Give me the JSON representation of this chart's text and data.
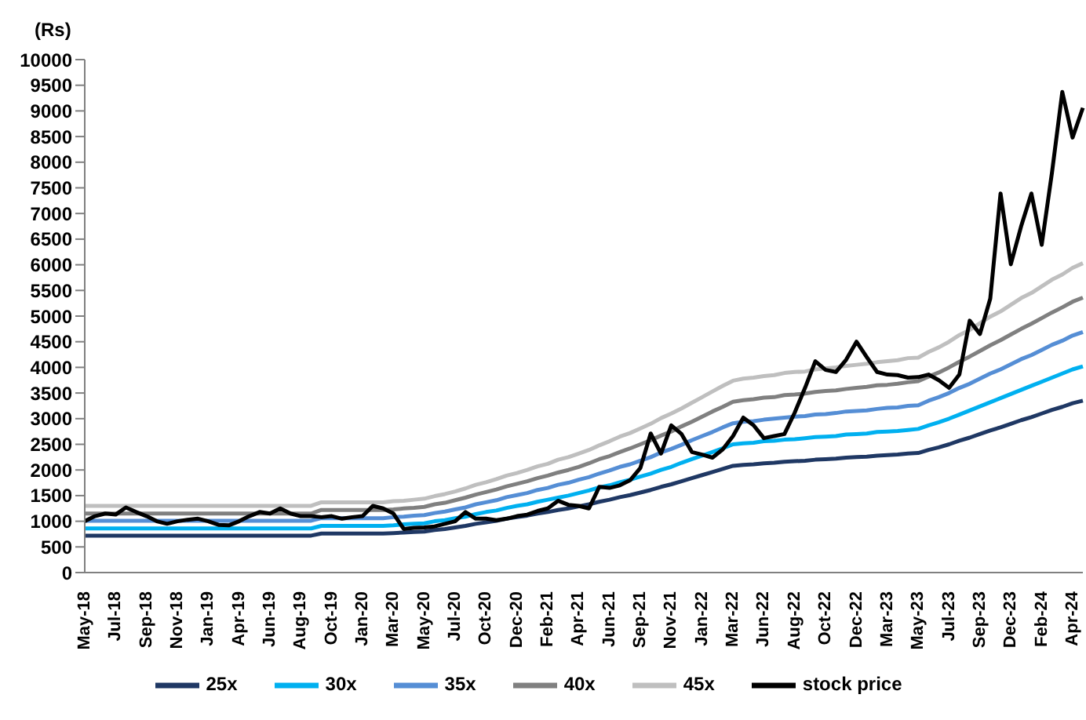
{
  "chart_data": {
    "type": "line",
    "ylabel": "(Rs)",
    "categories": [
      "May-18",
      null,
      null,
      "Jul-18",
      null,
      null,
      "Sep-18",
      null,
      null,
      "Nov-18",
      null,
      null,
      "Jan-19",
      null,
      null,
      "Apr-19",
      null,
      null,
      "Jun-19",
      null,
      null,
      "Aug-19",
      null,
      null,
      "Oct-19",
      null,
      null,
      "Jan-20",
      null,
      null,
      "Mar-20",
      null,
      null,
      "May-20",
      null,
      null,
      "Jul-20",
      null,
      null,
      "Oct-20",
      null,
      null,
      "Dec-20",
      null,
      null,
      "Feb-21",
      null,
      null,
      "Apr-21",
      null,
      null,
      "Jun-21",
      null,
      null,
      "Sep-21",
      null,
      null,
      "Nov-21",
      null,
      null,
      "Jan-22",
      null,
      null,
      "Mar-22",
      null,
      null,
      "Jun-22",
      null,
      null,
      "Aug-22",
      null,
      null,
      "Oct-22",
      null,
      null,
      "Dec-22",
      null,
      null,
      "Mar-23",
      null,
      null,
      "May-23",
      null,
      null,
      "Jul-23",
      null,
      null,
      "Sep-23",
      null,
      null,
      "Dec-23",
      null,
      null,
      "Feb-24",
      null,
      null,
      "Apr-24",
      null
    ],
    "series": [
      {
        "name": "25x",
        "color": "#1f3864",
        "values": [
          720,
          720,
          720,
          720,
          720,
          720,
          720,
          720,
          720,
          720,
          720,
          720,
          720,
          720,
          720,
          720,
          720,
          720,
          720,
          720,
          720,
          720,
          720,
          760,
          760,
          760,
          760,
          760,
          760,
          760,
          770,
          780,
          790,
          800,
          830,
          850,
          880,
          910,
          950,
          980,
          1010,
          1050,
          1080,
          1110,
          1150,
          1180,
          1220,
          1250,
          1290,
          1330,
          1380,
          1420,
          1470,
          1510,
          1560,
          1610,
          1670,
          1720,
          1780,
          1840,
          1900,
          1960,
          2020,
          2080,
          2100,
          2110,
          2130,
          2140,
          2160,
          2170,
          2180,
          2200,
          2210,
          2220,
          2240,
          2250,
          2260,
          2280,
          2290,
          2300,
          2320,
          2330,
          2390,
          2440,
          2500,
          2570,
          2630,
          2700,
          2770,
          2830,
          2900,
          2970,
          3030,
          3100,
          3170,
          3230,
          3300,
          3350
        ]
      },
      {
        "name": "30x",
        "color": "#00b0f0",
        "values": [
          860,
          860,
          860,
          860,
          860,
          860,
          860,
          860,
          860,
          860,
          860,
          860,
          860,
          860,
          860,
          860,
          860,
          860,
          860,
          860,
          860,
          860,
          860,
          910,
          910,
          910,
          910,
          910,
          910,
          910,
          920,
          940,
          950,
          960,
          1000,
          1020,
          1060,
          1090,
          1140,
          1180,
          1210,
          1260,
          1300,
          1330,
          1380,
          1420,
          1460,
          1500,
          1550,
          1600,
          1660,
          1700,
          1760,
          1810,
          1870,
          1930,
          2000,
          2060,
          2140,
          2210,
          2280,
          2350,
          2420,
          2500,
          2520,
          2530,
          2560,
          2570,
          2590,
          2600,
          2620,
          2640,
          2650,
          2660,
          2690,
          2700,
          2710,
          2740,
          2750,
          2760,
          2780,
          2800,
          2870,
          2930,
          3000,
          3080,
          3160,
          3240,
          3320,
          3400,
          3480,
          3560,
          3640,
          3720,
          3800,
          3880,
          3960,
          4020
        ]
      },
      {
        "name": "35x",
        "color": "#558ed5",
        "values": [
          1010,
          1010,
          1010,
          1010,
          1010,
          1010,
          1010,
          1010,
          1010,
          1010,
          1010,
          1010,
          1010,
          1010,
          1010,
          1010,
          1010,
          1010,
          1010,
          1010,
          1010,
          1010,
          1010,
          1060,
          1060,
          1060,
          1060,
          1060,
          1060,
          1060,
          1080,
          1090,
          1110,
          1120,
          1160,
          1190,
          1230,
          1270,
          1330,
          1370,
          1410,
          1470,
          1510,
          1550,
          1610,
          1650,
          1710,
          1750,
          1810,
          1860,
          1930,
          1990,
          2060,
          2110,
          2180,
          2250,
          2340,
          2410,
          2490,
          2580,
          2660,
          2740,
          2830,
          2910,
          2940,
          2950,
          2980,
          3000,
          3020,
          3040,
          3050,
          3080,
          3090,
          3110,
          3140,
          3150,
          3160,
          3190,
          3210,
          3220,
          3250,
          3260,
          3350,
          3420,
          3500,
          3600,
          3680,
          3780,
          3880,
          3960,
          4060,
          4160,
          4240,
          4340,
          4440,
          4520,
          4620,
          4690
        ]
      },
      {
        "name": "40x",
        "color": "#808080",
        "values": [
          1150,
          1150,
          1150,
          1150,
          1150,
          1150,
          1150,
          1150,
          1150,
          1150,
          1150,
          1150,
          1150,
          1150,
          1150,
          1150,
          1150,
          1150,
          1150,
          1150,
          1150,
          1150,
          1150,
          1220,
          1220,
          1220,
          1220,
          1220,
          1220,
          1220,
          1230,
          1250,
          1260,
          1280,
          1330,
          1360,
          1410,
          1460,
          1520,
          1570,
          1620,
          1680,
          1730,
          1780,
          1840,
          1890,
          1950,
          2000,
          2060,
          2130,
          2210,
          2270,
          2350,
          2420,
          2500,
          2580,
          2670,
          2750,
          2850,
          2940,
          3040,
          3140,
          3230,
          3330,
          3360,
          3380,
          3410,
          3420,
          3460,
          3470,
          3490,
          3520,
          3540,
          3550,
          3580,
          3600,
          3620,
          3650,
          3660,
          3680,
          3710,
          3730,
          3820,
          3900,
          4000,
          4110,
          4210,
          4320,
          4430,
          4530,
          4640,
          4750,
          4850,
          4960,
          5070,
          5170,
          5280,
          5360
        ]
      },
      {
        "name": "45x",
        "color": "#bfbfbf",
        "values": [
          1300,
          1300,
          1300,
          1300,
          1300,
          1300,
          1300,
          1300,
          1300,
          1300,
          1300,
          1300,
          1300,
          1300,
          1300,
          1300,
          1300,
          1300,
          1300,
          1300,
          1300,
          1300,
          1300,
          1370,
          1370,
          1370,
          1370,
          1370,
          1370,
          1370,
          1390,
          1400,
          1420,
          1440,
          1490,
          1530,
          1580,
          1640,
          1710,
          1760,
          1820,
          1890,
          1940,
          2000,
          2070,
          2120,
          2200,
          2250,
          2320,
          2390,
          2480,
          2560,
          2650,
          2720,
          2810,
          2900,
          3010,
          3100,
          3200,
          3310,
          3420,
          3530,
          3640,
          3740,
          3780,
          3800,
          3830,
          3850,
          3890,
          3910,
          3920,
          3960,
          3980,
          4000,
          4030,
          4050,
          4070,
          4100,
          4120,
          4140,
          4180,
          4190,
          4300,
          4390,
          4500,
          4630,
          4730,
          4860,
          4990,
          5090,
          5220,
          5350,
          5450,
          5580,
          5710,
          5810,
          5940,
          6030
        ]
      },
      {
        "name": "stock price",
        "color": "#000000",
        "values": [
          1000,
          1100,
          1150,
          1130,
          1270,
          1180,
          1100,
          1000,
          950,
          1000,
          1030,
          1050,
          1000,
          930,
          920,
          1000,
          1100,
          1180,
          1150,
          1250,
          1150,
          1100,
          1100,
          1080,
          1100,
          1050,
          1080,
          1100,
          1300,
          1250,
          1150,
          850,
          870,
          880,
          900,
          950,
          1000,
          1180,
          1050,
          1050,
          1020,
          1050,
          1100,
          1130,
          1200,
          1250,
          1400,
          1320,
          1300,
          1250,
          1670,
          1650,
          1700,
          1800,
          2040,
          2710,
          2320,
          2870,
          2700,
          2350,
          2300,
          2240,
          2400,
          2660,
          3020,
          2870,
          2620,
          2660,
          2700,
          3120,
          3600,
          4120,
          3950,
          3910,
          4150,
          4500,
          4200,
          3910,
          3860,
          3850,
          3800,
          3810,
          3860,
          3750,
          3600,
          3860,
          4910,
          4650,
          5340,
          7390,
          6010,
          6750,
          7390,
          6390,
          7800,
          9370,
          8480,
          9060
        ]
      }
    ],
    "ylim": [
      0,
      10000
    ],
    "yticks": [
      0,
      500,
      1000,
      1500,
      2000,
      2500,
      3000,
      3500,
      4000,
      4500,
      5000,
      5500,
      6000,
      6500,
      7000,
      7500,
      8000,
      8500,
      9000,
      9500,
      10000
    ],
    "grid": false,
    "legend": "bottom",
    "marker": "none",
    "line_style": "solid"
  }
}
